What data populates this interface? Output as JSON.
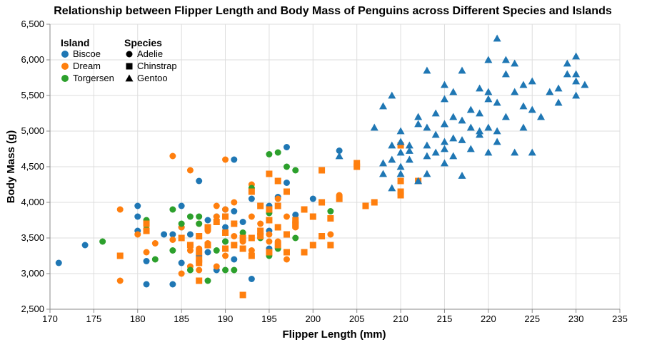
{
  "chart_data": {
    "type": "scatter",
    "title": "Relationship between Flipper Length and Body Mass of Penguins across Different Species and Islands",
    "xlabel": "Flipper Length (mm)",
    "ylabel": "Body Mass (g)",
    "xlim": [
      170,
      235
    ],
    "ylim": [
      2500,
      6500
    ],
    "xticks": [
      170,
      175,
      180,
      185,
      190,
      195,
      200,
      205,
      210,
      215,
      220,
      225,
      230,
      235
    ],
    "yticks": [
      2500,
      3000,
      3500,
      4000,
      4500,
      5000,
      5500,
      6000,
      6500
    ],
    "ytick_labels": [
      "2,500",
      "3,000",
      "3,500",
      "4,000",
      "4,500",
      "5,000",
      "5,500",
      "6,000",
      "6,500"
    ],
    "grid": true,
    "legend": {
      "placement": "top-left",
      "color_title": "Island",
      "shape_title": "Species",
      "islands": [
        {
          "name": "Biscoe",
          "color": "#1f77b4"
        },
        {
          "name": "Dream",
          "color": "#ff7f0e"
        },
        {
          "name": "Torgersen",
          "color": "#2ca02c"
        }
      ],
      "species": [
        {
          "name": "Adelie",
          "shape": "circle"
        },
        {
          "name": "Chinstrap",
          "shape": "square"
        },
        {
          "name": "Gentoo",
          "shape": "triangle"
        }
      ]
    },
    "series": [
      {
        "island": "Biscoe",
        "species": "Adelie",
        "color": "#1f77b4",
        "shape": "circle",
        "x": [
          171,
          174,
          180,
          180,
          180,
          181,
          181,
          183,
          184,
          184,
          185,
          185,
          186,
          186,
          187,
          187,
          188,
          188,
          189,
          190,
          190,
          191,
          191,
          191,
          192,
          193,
          193,
          195,
          195,
          196,
          197,
          197,
          198,
          200,
          203,
          185,
          189,
          190,
          194,
          195
        ],
        "y": [
          3150,
          3400,
          3950,
          3800,
          3600,
          3175,
          2850,
          3550,
          3550,
          2850,
          3950,
          3150,
          3550,
          3400,
          4300,
          3250,
          3750,
          3300,
          3800,
          3900,
          3450,
          4600,
          3875,
          3200,
          3725,
          2925,
          4050,
          3350,
          3950,
          4075,
          4775,
          4275,
          3825,
          4050,
          4725,
          3650,
          3050,
          3650,
          3550,
          3600
        ]
      },
      {
        "island": "Dream",
        "species": "Adelie",
        "color": "#ff7f0e",
        "shape": "circle",
        "x": [
          178,
          178,
          180,
          181,
          182,
          184,
          184,
          185,
          186,
          186,
          187,
          187,
          188,
          188,
          189,
          189,
          190,
          190,
          190,
          191,
          191,
          192,
          193,
          193,
          194,
          195,
          195,
          196,
          196,
          197,
          198,
          199,
          201,
          202,
          203,
          185,
          187,
          189,
          191,
          193,
          197,
          186,
          192
        ],
        "y": [
          3900,
          2900,
          3550,
          3300,
          3425,
          4650,
          3475,
          3000,
          4450,
          3325,
          3050,
          3700,
          3600,
          3425,
          3950,
          3100,
          4600,
          3900,
          3250,
          4000,
          3525,
          3450,
          4250,
          3325,
          3700,
          3550,
          3450,
          3450,
          4050,
          3200,
          3650,
          3900,
          4000,
          3550,
          4100,
          3650,
          3350,
          3800,
          3400,
          3800,
          3800,
          3100,
          3525
        ]
      },
      {
        "island": "Torgersen",
        "species": "Adelie",
        "color": "#2ca02c",
        "shape": "circle",
        "x": [
          176,
          181,
          181,
          182,
          184,
          184,
          185,
          186,
          186,
          187,
          187,
          188,
          189,
          190,
          190,
          190,
          191,
          191,
          192,
          193,
          194,
          195,
          195,
          196,
          196,
          197,
          198,
          198,
          202,
          195
        ],
        "y": [
          3450,
          3750,
          3625,
          3200,
          3900,
          3325,
          3700,
          3800,
          3050,
          3800,
          3700,
          2900,
          3325,
          3800,
          3450,
          3050,
          3700,
          3050,
          3575,
          4200,
          3500,
          4675,
          3250,
          4700,
          3350,
          4500,
          3500,
          4450,
          3875,
          3850
        ]
      },
      {
        "island": "Dream",
        "species": "Chinstrap",
        "color": "#ff7f0e",
        "shape": "square",
        "x": [
          178,
          181,
          181,
          185,
          186,
          187,
          187,
          187,
          187,
          188,
          188,
          189,
          190,
          190,
          190,
          191,
          191,
          192,
          192,
          193,
          193,
          193,
          194,
          194,
          195,
          195,
          195,
          196,
          196,
          196,
          197,
          197,
          197,
          198,
          198,
          198,
          199,
          200,
          200,
          201,
          201,
          201,
          202,
          202,
          203,
          205,
          205,
          206,
          207,
          210,
          210,
          210,
          212,
          187,
          192,
          195,
          199,
          210,
          194,
          196
        ],
        "y": [
          3250,
          3700,
          3600,
          3500,
          3400,
          3525,
          3300,
          3150,
          2900,
          3650,
          3400,
          3725,
          3800,
          3575,
          3350,
          3700,
          3400,
          3500,
          2700,
          3250,
          4150,
          3500,
          3950,
          3525,
          4400,
          3900,
          3300,
          4300,
          3650,
          3950,
          4150,
          3550,
          3300,
          3750,
          3700,
          3675,
          3300,
          3800,
          3400,
          4450,
          4000,
          3525,
          3775,
          3400,
          4050,
          4550,
          4500,
          3950,
          4000,
          4800,
          4300,
          4100,
          4300,
          3200,
          3350,
          3750,
          3900,
          4150,
          3600,
          3400
        ]
      },
      {
        "island": "Biscoe",
        "species": "Gentoo",
        "color": "#1f77b4",
        "shape": "triangle",
        "x": [
          203,
          207,
          208,
          208,
          208,
          209,
          209,
          209,
          210,
          210,
          210,
          210,
          211,
          211,
          212,
          212,
          213,
          213,
          213,
          214,
          214,
          214,
          215,
          215,
          215,
          215,
          215,
          216,
          216,
          216,
          217,
          217,
          217,
          218,
          218,
          219,
          219,
          219,
          220,
          220,
          220,
          220,
          221,
          221,
          221,
          222,
          222,
          223,
          223,
          224,
          224,
          225,
          225,
          225,
          226,
          228,
          228,
          229,
          229,
          230,
          230,
          230,
          231,
          230,
          211,
          213,
          215,
          217,
          218,
          220,
          222,
          209,
          212,
          216,
          219,
          221,
          223,
          224,
          227,
          215,
          210,
          213
        ],
        "y": [
          4650,
          5050,
          4400,
          4550,
          5350,
          4600,
          4800,
          5500,
          4700,
          4850,
          5000,
          4500,
          4800,
          4600,
          5200,
          5100,
          4650,
          5850,
          5050,
          4700,
          5250,
          4950,
          5650,
          5450,
          5100,
          4850,
          4750,
          5550,
          5200,
          4900,
          5850,
          5150,
          4375,
          5300,
          4750,
          5250,
          5000,
          5600,
          5550,
          5050,
          4700,
          6000,
          6300,
          5000,
          5400,
          6000,
          5200,
          5950,
          5550,
          5650,
          5350,
          5700,
          5300,
          4700,
          5200,
          5600,
          5400,
          5950,
          5800,
          5800,
          6050,
          5500,
          5650,
          5700,
          4725,
          4400,
          4550,
          4875,
          5050,
          5450,
          5800,
          4200,
          4300,
          4650,
          4950,
          4850,
          4700,
          5050,
          5550,
          5100,
          4400,
          4800
        ]
      }
    ]
  }
}
